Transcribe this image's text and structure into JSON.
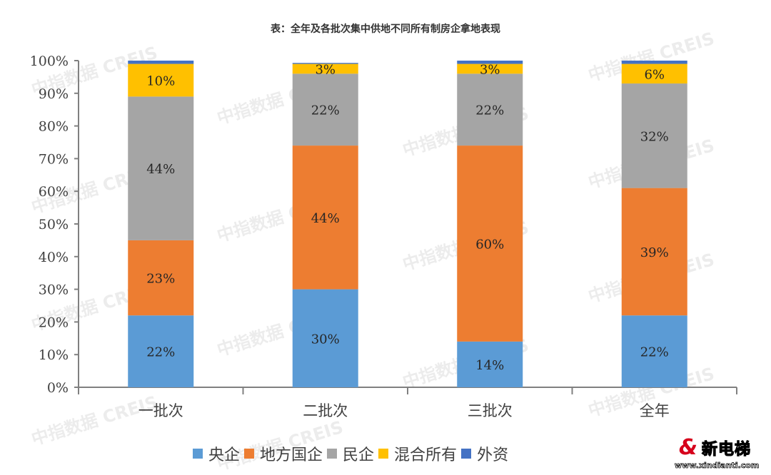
{
  "title": "表：全年及各批次集中供地不同所有制房企拿地表现",
  "legend": [
    {
      "label": "央企",
      "color": "#5b9bd5"
    },
    {
      "label": "地方国企",
      "color": "#ed7d31"
    },
    {
      "label": "民企",
      "color": "#a5a5a5"
    },
    {
      "label": "混合所有",
      "color": "#ffc000"
    },
    {
      "label": "外资",
      "color": "#4472c4"
    }
  ],
  "watermark": "中指数据 CREIS",
  "logo": {
    "name": "新电梯",
    "url": "www.xindianti.com"
  },
  "chart_data": {
    "type": "bar",
    "stacked": true,
    "title": "表：全年及各批次集中供地不同所有制房企拿地表现",
    "xlabel": "",
    "ylabel": "",
    "ylim": [
      0,
      100
    ],
    "y_ticks": [
      "0%",
      "10%",
      "20%",
      "30%",
      "40%",
      "50%",
      "60%",
      "70%",
      "80%",
      "90%",
      "100%"
    ],
    "categories": [
      "一批次",
      "二批次",
      "三批次",
      "全年"
    ],
    "series": [
      {
        "name": "央企",
        "color": "#5b9bd5",
        "values": [
          22,
          30,
          14,
          22
        ],
        "labels": [
          "22%",
          "30%",
          "14%",
          "22%"
        ]
      },
      {
        "name": "地方国企",
        "color": "#ed7d31",
        "values": [
          23,
          44,
          60,
          39
        ],
        "labels": [
          "23%",
          "44%",
          "60%",
          "39%"
        ]
      },
      {
        "name": "民企",
        "color": "#a5a5a5",
        "values": [
          44,
          22,
          22,
          32
        ],
        "labels": [
          "44%",
          "22%",
          "22%",
          "32%"
        ]
      },
      {
        "name": "混合所有",
        "color": "#ffc000",
        "values": [
          10,
          3,
          3,
          6
        ],
        "labels": [
          "10%",
          "3%",
          "3%",
          "6%"
        ]
      },
      {
        "name": "外资",
        "color": "#4472c4",
        "values": [
          1,
          0.3,
          1,
          1
        ],
        "labels": [
          "",
          "",
          "",
          ""
        ]
      }
    ],
    "grid": false,
    "legend_position": "bottom"
  }
}
